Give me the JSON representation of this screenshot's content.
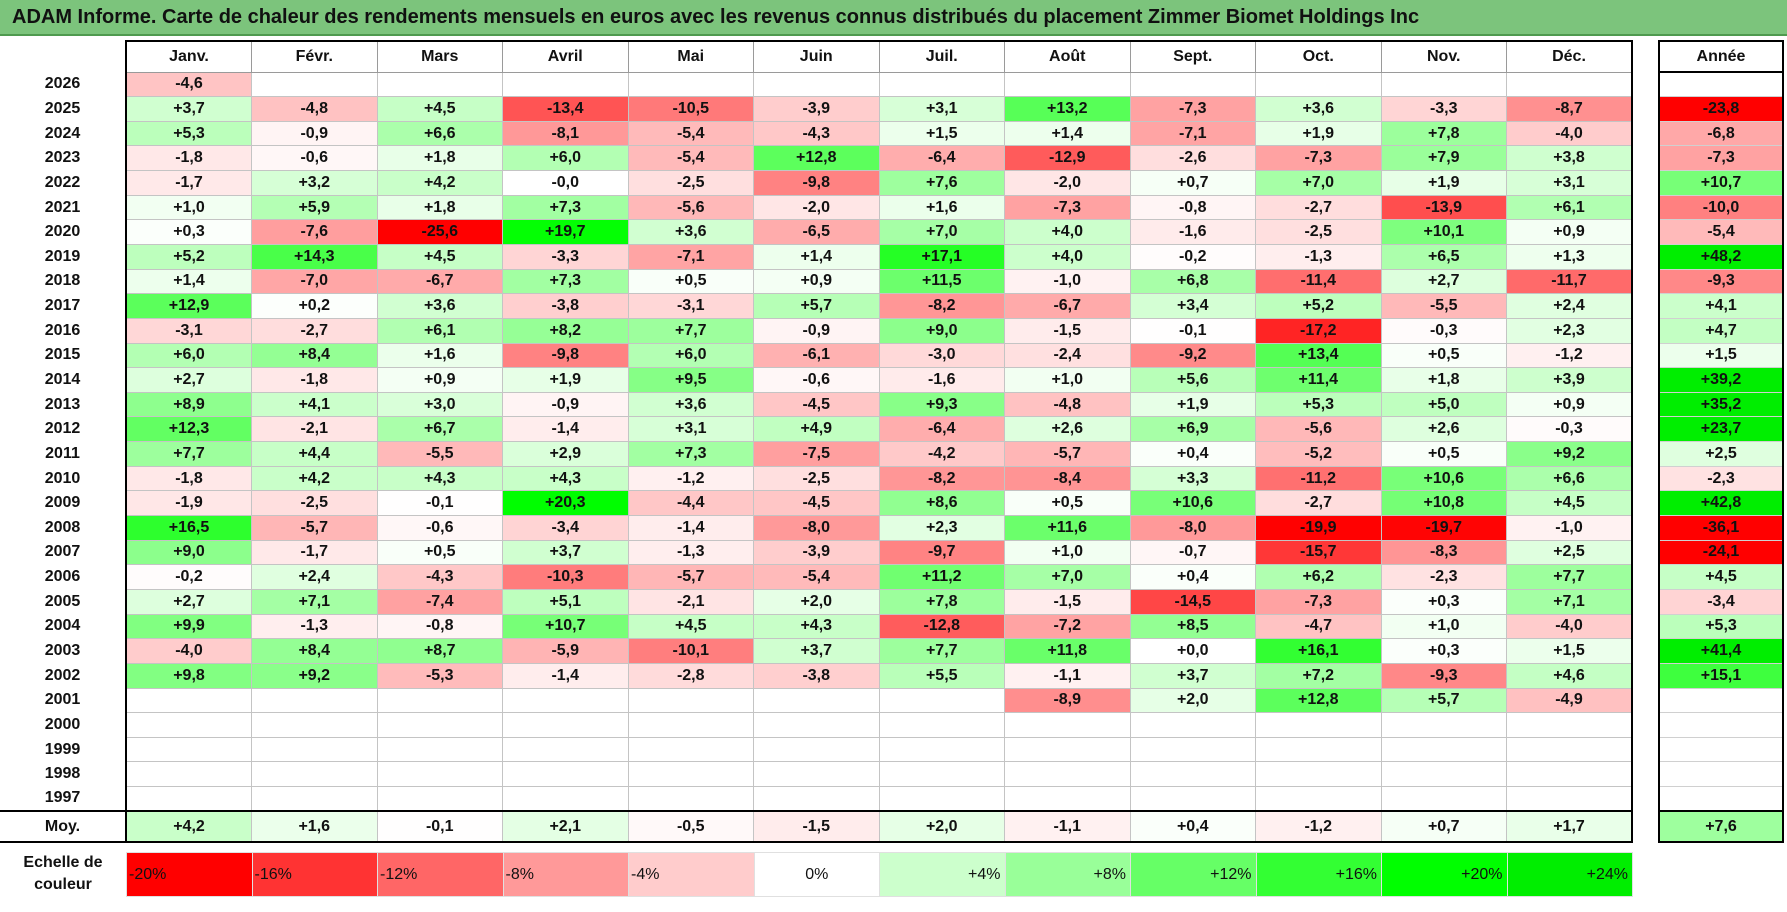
{
  "title": "ADAM Informe. Carte de chaleur des rendements mensuels en euros avec les revenus connus distribués du placement Zimmer Biomet Holdings Inc",
  "chart_data": {
    "type": "heatmap",
    "title": "ADAM Informe. Carte de chaleur des rendements mensuels en euros avec les revenus connus distribués du placement Zimmer Biomet Holdings Inc",
    "columns": [
      "Janv.",
      "Févr.",
      "Mars",
      "Avril",
      "Mai",
      "Juin",
      "Juil.",
      "Août",
      "Sept.",
      "Oct.",
      "Nov.",
      "Déc."
    ],
    "year_header": "Année",
    "rows": [
      {
        "year": "2026",
        "values": [
          "-4,6",
          "",
          "",
          "",
          "",
          "",
          "",
          "",
          "",
          "",
          "",
          ""
        ],
        "annual": ""
      },
      {
        "year": "2025",
        "values": [
          "+3,7",
          "-4,8",
          "+4,5",
          "-13,4",
          "-10,5",
          "-3,9",
          "+3,1",
          "+13,2",
          "-7,3",
          "+3,6",
          "-3,3",
          "-8,7"
        ],
        "annual": "-23,8"
      },
      {
        "year": "2024",
        "values": [
          "+5,3",
          "-0,9",
          "+6,6",
          "-8,1",
          "-5,4",
          "-4,3",
          "+1,5",
          "+1,4",
          "-7,1",
          "+1,9",
          "+7,8",
          "-4,0"
        ],
        "annual": "-6,8"
      },
      {
        "year": "2023",
        "values": [
          "-1,8",
          "-0,6",
          "+1,8",
          "+6,0",
          "-5,4",
          "+12,8",
          "-6,4",
          "-12,9",
          "-2,6",
          "-7,3",
          "+7,9",
          "+3,8"
        ],
        "annual": "-7,3"
      },
      {
        "year": "2022",
        "values": [
          "-1,7",
          "+3,2",
          "+4,2",
          "-0,0",
          "-2,5",
          "-9,8",
          "+7,6",
          "-2,0",
          "+0,7",
          "+7,0",
          "+1,9",
          "+3,1"
        ],
        "annual": "+10,7"
      },
      {
        "year": "2021",
        "values": [
          "+1,0",
          "+5,9",
          "+1,8",
          "+7,3",
          "-5,6",
          "-2,0",
          "+1,6",
          "-7,3",
          "-0,8",
          "-2,7",
          "-13,9",
          "+6,1"
        ],
        "annual": "-10,0"
      },
      {
        "year": "2020",
        "values": [
          "+0,3",
          "-7,6",
          "-25,6",
          "+19,7",
          "+3,6",
          "-6,5",
          "+7,0",
          "+4,0",
          "-1,6",
          "-2,5",
          "+10,1",
          "+0,9"
        ],
        "annual": "-5,4"
      },
      {
        "year": "2019",
        "values": [
          "+5,2",
          "+14,3",
          "+4,5",
          "-3,3",
          "-7,1",
          "+1,4",
          "+17,1",
          "+4,0",
          "-0,2",
          "-1,3",
          "+6,5",
          "+1,3"
        ],
        "annual": "+48,2"
      },
      {
        "year": "2018",
        "values": [
          "+1,4",
          "-7,0",
          "-6,7",
          "+7,3",
          "+0,5",
          "+0,9",
          "+11,5",
          "-1,0",
          "+6,8",
          "-11,4",
          "+2,7",
          "-11,7"
        ],
        "annual": "-9,3"
      },
      {
        "year": "2017",
        "values": [
          "+12,9",
          "+0,2",
          "+3,6",
          "-3,8",
          "-3,1",
          "+5,7",
          "-8,2",
          "-6,7",
          "+3,4",
          "+5,2",
          "-5,5",
          "+2,4"
        ],
        "annual": "+4,1"
      },
      {
        "year": "2016",
        "values": [
          "-3,1",
          "-2,7",
          "+6,1",
          "+8,2",
          "+7,7",
          "-0,9",
          "+9,0",
          "-1,5",
          "-0,1",
          "-17,2",
          "-0,3",
          "+2,3"
        ],
        "annual": "+4,7"
      },
      {
        "year": "2015",
        "values": [
          "+6,0",
          "+8,4",
          "+1,6",
          "-9,8",
          "+6,0",
          "-6,1",
          "-3,0",
          "-2,4",
          "-9,2",
          "+13,4",
          "+0,5",
          "-1,2"
        ],
        "annual": "+1,5"
      },
      {
        "year": "2014",
        "values": [
          "+2,7",
          "-1,8",
          "+0,9",
          "+1,9",
          "+9,5",
          "-0,6",
          "-1,6",
          "+1,0",
          "+5,6",
          "+11,4",
          "+1,8",
          "+3,9"
        ],
        "annual": "+39,2"
      },
      {
        "year": "2013",
        "values": [
          "+8,9",
          "+4,1",
          "+3,0",
          "-0,9",
          "+3,6",
          "-4,5",
          "+9,3",
          "-4,8",
          "+1,9",
          "+5,3",
          "+5,0",
          "+0,9"
        ],
        "annual": "+35,2"
      },
      {
        "year": "2012",
        "values": [
          "+12,3",
          "-2,1",
          "+6,7",
          "-1,4",
          "+3,1",
          "+4,9",
          "-6,4",
          "+2,6",
          "+6,9",
          "-5,6",
          "+2,6",
          "-0,3"
        ],
        "annual": "+23,7"
      },
      {
        "year": "2011",
        "values": [
          "+7,7",
          "+4,4",
          "-5,5",
          "+2,9",
          "+7,3",
          "-7,5",
          "-4,2",
          "-5,7",
          "+0,4",
          "-5,2",
          "+0,5",
          "+9,2"
        ],
        "annual": "+2,5"
      },
      {
        "year": "2010",
        "values": [
          "-1,8",
          "+4,2",
          "+4,3",
          "+4,3",
          "-1,2",
          "-2,5",
          "-8,2",
          "-8,4",
          "+3,3",
          "-11,2",
          "+10,6",
          "+6,6"
        ],
        "annual": "-2,3"
      },
      {
        "year": "2009",
        "values": [
          "-1,9",
          "-2,5",
          "-0,1",
          "+20,3",
          "-4,4",
          "-4,5",
          "+8,6",
          "+0,5",
          "+10,6",
          "-2,7",
          "+10,8",
          "+4,5"
        ],
        "annual": "+42,8"
      },
      {
        "year": "2008",
        "values": [
          "+16,5",
          "-5,7",
          "-0,6",
          "-3,4",
          "-1,4",
          "-8,0",
          "+2,3",
          "+11,6",
          "-8,0",
          "-19,9",
          "-19,7",
          "-1,0"
        ],
        "annual": "-36,1"
      },
      {
        "year": "2007",
        "values": [
          "+9,0",
          "-1,7",
          "+0,5",
          "+3,7",
          "-1,3",
          "-3,9",
          "-9,7",
          "+1,0",
          "-0,7",
          "-15,7",
          "-8,3",
          "+2,5"
        ],
        "annual": "-24,1"
      },
      {
        "year": "2006",
        "values": [
          "-0,2",
          "+2,4",
          "-4,3",
          "-10,3",
          "-5,7",
          "-5,4",
          "+11,2",
          "+7,0",
          "+0,4",
          "+6,2",
          "-2,3",
          "+7,7"
        ],
        "annual": "+4,5"
      },
      {
        "year": "2005",
        "values": [
          "+2,7",
          "+7,1",
          "-7,4",
          "+5,1",
          "-2,1",
          "+2,0",
          "+7,8",
          "-1,5",
          "-14,5",
          "-7,3",
          "+0,3",
          "+7,1"
        ],
        "annual": "-3,4"
      },
      {
        "year": "2004",
        "values": [
          "+9,9",
          "-1,3",
          "-0,8",
          "+10,7",
          "+4,5",
          "+4,3",
          "-12,8",
          "-7,2",
          "+8,5",
          "-4,7",
          "+1,0",
          "-4,0"
        ],
        "annual": "+5,3"
      },
      {
        "year": "2003",
        "values": [
          "-4,0",
          "+8,4",
          "+8,7",
          "-5,9",
          "-10,1",
          "+3,7",
          "+7,7",
          "+11,8",
          "+0,0",
          "+16,1",
          "+0,3",
          "+1,5"
        ],
        "annual": "+41,4"
      },
      {
        "year": "2002",
        "values": [
          "+9,8",
          "+9,2",
          "-5,3",
          "-1,4",
          "-2,8",
          "-3,8",
          "+5,5",
          "-1,1",
          "+3,7",
          "+7,2",
          "-9,3",
          "+4,6"
        ],
        "annual": "+15,1"
      },
      {
        "year": "2001",
        "values": [
          "",
          "",
          "",
          "",
          "",
          "",
          "",
          "-8,9",
          "+2,0",
          "+12,8",
          "+5,7",
          "-4,9"
        ],
        "annual": ""
      },
      {
        "year": "2000",
        "values": [
          "",
          "",
          "",
          "",
          "",
          "",
          "",
          "",
          "",
          "",
          "",
          ""
        ],
        "annual": ""
      },
      {
        "year": "1999",
        "values": [
          "",
          "",
          "",
          "",
          "",
          "",
          "",
          "",
          "",
          "",
          "",
          ""
        ],
        "annual": ""
      },
      {
        "year": "1998",
        "values": [
          "",
          "",
          "",
          "",
          "",
          "",
          "",
          "",
          "",
          "",
          "",
          ""
        ],
        "annual": ""
      },
      {
        "year": "1997",
        "values": [
          "",
          "",
          "",
          "",
          "",
          "",
          "",
          "",
          "",
          "",
          "",
          ""
        ],
        "annual": ""
      }
    ],
    "average": {
      "label": "Moy.",
      "values": [
        "+4,2",
        "+1,6",
        "-0,1",
        "+2,1",
        "-0,5",
        "-1,5",
        "+2,0",
        "-1,1",
        "+0,4",
        "-1,2",
        "+0,7",
        "+1,7"
      ],
      "annual": "+7,6"
    },
    "color_scale": {
      "label": "Echelle de couleur",
      "stops": [
        {
          "label": "-20%",
          "value": -20,
          "color": "#ff0000"
        },
        {
          "label": "-16%",
          "value": -16,
          "color": "#ff3333"
        },
        {
          "label": "-12%",
          "value": -12,
          "color": "#ff6666"
        },
        {
          "label": "-8%",
          "value": -8,
          "color": "#ff9999"
        },
        {
          "label": "-4%",
          "value": -4,
          "color": "#ffcccc"
        },
        {
          "label": "0%",
          "value": 0,
          "color": "#ffffff"
        },
        {
          "label": "+4%",
          "value": 4,
          "color": "#ccffcc"
        },
        {
          "label": "+8%",
          "value": 8,
          "color": "#99ff99"
        },
        {
          "label": "+12%",
          "value": 12,
          "color": "#66ff66"
        },
        {
          "label": "+16%",
          "value": 16,
          "color": "#33ff33"
        },
        {
          "label": "+20%",
          "value": 20,
          "color": "#00ff00"
        },
        {
          "label": "+24%",
          "value": 24,
          "color": "#00ee00"
        }
      ]
    }
  }
}
